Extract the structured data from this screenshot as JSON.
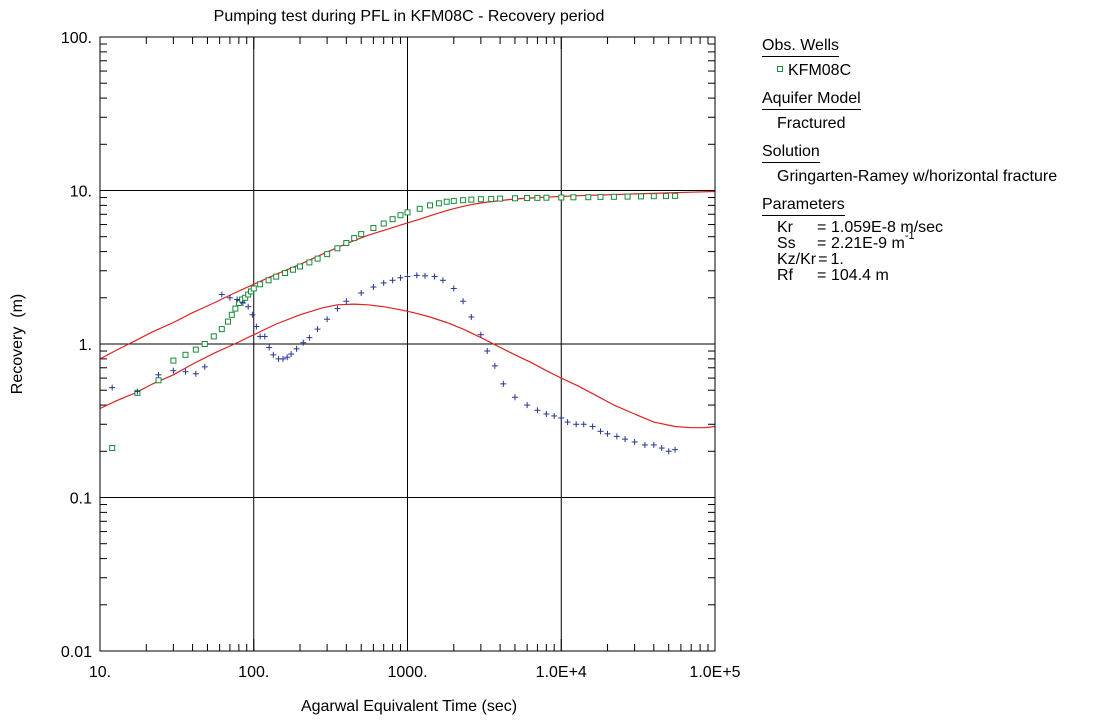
{
  "chart_data": {
    "type": "scatter",
    "title": "Pumping test during PFL in KFM08C - Recovery period",
    "xlabel": "Agarwal Equivalent Time (sec)",
    "ylabel": "Recovery  (m)",
    "x_scale": "log",
    "y_scale": "log",
    "xlim": [
      10,
      100000
    ],
    "ylim": [
      0.01,
      100
    ],
    "grid": true,
    "x_ticks": [
      {
        "value": 10,
        "label": "10."
      },
      {
        "value": 100,
        "label": "100."
      },
      {
        "value": 1000,
        "label": "1000."
      },
      {
        "value": 10000,
        "label": "1.0E+4"
      },
      {
        "value": 100000,
        "label": "1.0E+5"
      }
    ],
    "y_ticks": [
      {
        "value": 0.01,
        "label": "0.01"
      },
      {
        "value": 0.1,
        "label": "0.1"
      },
      {
        "value": 1,
        "label": "1."
      },
      {
        "value": 10,
        "label": "10."
      },
      {
        "value": 100,
        "label": "100."
      }
    ],
    "series": [
      {
        "name": "KFM08C",
        "kind": "observed-drawdown",
        "marker": "square",
        "color": "#1a8a3a",
        "x": [
          12,
          17.5,
          24,
          30,
          36,
          42,
          48,
          55,
          62,
          68,
          72,
          76,
          80,
          84,
          88,
          92,
          96,
          100,
          110,
          125,
          140,
          160,
          180,
          200,
          230,
          260,
          300,
          350,
          400,
          450,
          500,
          600,
          700,
          800,
          900,
          1000,
          1200,
          1400,
          1600,
          1800,
          2000,
          2300,
          2600,
          3000,
          3500,
          4000,
          5000,
          6000,
          7000,
          8000,
          10000,
          12000,
          15000,
          18000,
          22000,
          27000,
          33000,
          40000,
          48000,
          55000
        ],
        "y": [
          0.21,
          0.48,
          0.58,
          0.78,
          0.85,
          0.92,
          1.0,
          1.12,
          1.25,
          1.4,
          1.55,
          1.7,
          1.85,
          1.95,
          2.0,
          2.1,
          2.2,
          2.3,
          2.45,
          2.6,
          2.75,
          2.9,
          3.05,
          3.2,
          3.4,
          3.6,
          3.85,
          4.2,
          4.55,
          4.9,
          5.2,
          5.7,
          6.1,
          6.5,
          6.9,
          7.2,
          7.6,
          8.0,
          8.25,
          8.45,
          8.55,
          8.65,
          8.72,
          8.78,
          8.82,
          8.85,
          8.9,
          8.93,
          8.95,
          8.98,
          9.0,
          9.03,
          9.05,
          9.08,
          9.1,
          9.13,
          9.15,
          9.18,
          9.2,
          9.22
        ]
      },
      {
        "kind": "observed-derivative",
        "marker": "plus",
        "color": "#27368f",
        "x": [
          12,
          17.5,
          24,
          30,
          36,
          42,
          48,
          62,
          70,
          78,
          85,
          92,
          98,
          104,
          110,
          118,
          126,
          134,
          145,
          155,
          165,
          175,
          190,
          210,
          230,
          260,
          300,
          350,
          400,
          500,
          600,
          700,
          800,
          900,
          1000,
          1150,
          1300,
          1500,
          1700,
          2000,
          2300,
          2600,
          3000,
          3300,
          3700,
          4200,
          5000,
          6000,
          7000,
          8000,
          9000,
          10000,
          11000,
          12500,
          14000,
          16000,
          18000,
          20000,
          23000,
          26000,
          30000,
          35000,
          40000,
          45000,
          50000,
          55000
        ],
        "y": [
          0.52,
          0.49,
          0.63,
          0.67,
          0.66,
          0.64,
          0.71,
          2.1,
          2.0,
          1.95,
          1.85,
          1.75,
          1.55,
          1.3,
          1.12,
          1.12,
          0.95,
          0.85,
          0.8,
          0.8,
          0.82,
          0.86,
          0.93,
          1.02,
          1.1,
          1.25,
          1.45,
          1.7,
          1.9,
          2.15,
          2.35,
          2.5,
          2.6,
          2.7,
          2.75,
          2.8,
          2.78,
          2.75,
          2.6,
          2.3,
          1.9,
          1.5,
          1.15,
          0.9,
          0.72,
          0.55,
          0.45,
          0.4,
          0.37,
          0.35,
          0.34,
          0.33,
          0.31,
          0.3,
          0.3,
          0.29,
          0.27,
          0.26,
          0.25,
          0.24,
          0.23,
          0.22,
          0.22,
          0.21,
          0.2,
          0.205
        ]
      },
      {
        "kind": "type-curve",
        "line": true,
        "color": "#dd2222",
        "x": [
          10,
          13,
          17,
          22,
          30,
          40,
          55,
          75,
          100,
          140,
          200,
          280,
          400,
          550,
          700,
          900,
          1000,
          1200,
          1500,
          1800,
          2200,
          2700,
          3300,
          4000,
          5000,
          6500,
          8000,
          10000,
          13000,
          18000,
          25000,
          35000,
          50000,
          70000,
          100000
        ],
        "y": [
          0.8,
          0.92,
          1.05,
          1.2,
          1.38,
          1.6,
          1.85,
          2.15,
          2.45,
          2.85,
          3.3,
          3.85,
          4.5,
          5.1,
          5.5,
          5.95,
          6.15,
          6.5,
          7.0,
          7.4,
          7.8,
          8.15,
          8.4,
          8.6,
          8.8,
          8.95,
          9.05,
          9.15,
          9.25,
          9.35,
          9.45,
          9.55,
          9.65,
          9.75,
          9.85
        ]
      },
      {
        "kind": "derivative-curve",
        "line": true,
        "color": "#dd2222",
        "x": [
          10,
          13,
          17,
          22,
          30,
          40,
          55,
          75,
          100,
          140,
          200,
          280,
          350,
          450,
          550,
          700,
          900,
          1100,
          1400,
          1800,
          2300,
          3000,
          4000,
          5000,
          6500,
          8000,
          10000,
          13000,
          17000,
          22000,
          30000,
          40000,
          55000,
          70000,
          85000,
          100000
        ],
        "y": [
          0.38,
          0.43,
          0.48,
          0.55,
          0.63,
          0.74,
          0.87,
          1.0,
          1.15,
          1.35,
          1.55,
          1.72,
          1.8,
          1.82,
          1.8,
          1.75,
          1.67,
          1.6,
          1.5,
          1.38,
          1.25,
          1.1,
          0.95,
          0.85,
          0.75,
          0.67,
          0.6,
          0.53,
          0.46,
          0.4,
          0.35,
          0.31,
          0.29,
          0.285,
          0.285,
          0.29
        ]
      }
    ]
  },
  "legend": {
    "obs_wells": {
      "heading": "Obs. Wells",
      "well": "KFM08C"
    },
    "aquifer_model": {
      "heading": "Aquifer Model",
      "value": "Fractured"
    },
    "solution": {
      "heading": "Solution",
      "value": "Gringarten-Ramey w/horizontal fracture"
    },
    "parameters": {
      "heading": "Parameters",
      "kr": {
        "name": "Kr",
        "value": "1.059E-8 m/sec"
      },
      "ss": {
        "name": "Ss",
        "value": "2.21E-9 m",
        "unit_exp": "-1"
      },
      "kzkr": {
        "name": "Kz/Kr",
        "value": "1."
      },
      "rf": {
        "name": "Rf",
        "value": "104.4 m"
      }
    }
  }
}
